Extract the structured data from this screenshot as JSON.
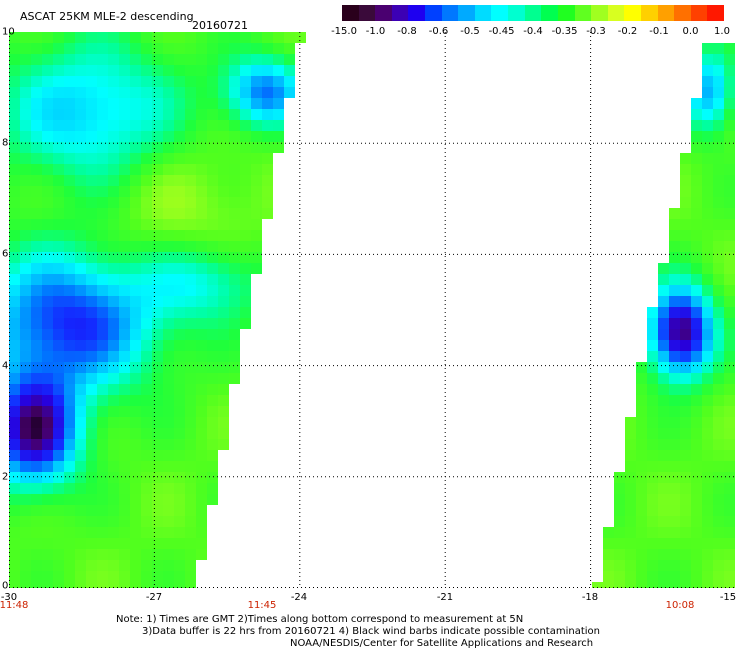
{
  "header": {
    "title": "ASCAT 25KM MLE-2 descending",
    "date": "20160721"
  },
  "colorbar": {
    "tick_labels": [
      "-15.0",
      "-1.0",
      "-0.8",
      "-0.6",
      "-0.5",
      "-0.45",
      "-0.4",
      "-0.35",
      "-0.3",
      "-0.2",
      "-0.1",
      "0.0",
      "1.0"
    ],
    "colors": [
      "#2a001c",
      "#3a0a3a",
      "#4a0070",
      "#3c00b4",
      "#1e00f0",
      "#0040ff",
      "#0078ff",
      "#00aaff",
      "#00dcff",
      "#00ffff",
      "#00ffd0",
      "#00ff90",
      "#00ff50",
      "#20ff20",
      "#60ff20",
      "#a0ff20",
      "#d8ff20",
      "#ffff00",
      "#ffd000",
      "#ffa000",
      "#ff7000",
      "#ff4000",
      "#ff1800"
    ]
  },
  "axes": {
    "y_ticks": [
      "10",
      "8",
      "6",
      "4",
      "2",
      "0"
    ],
    "x_ticks": [
      "-30",
      "-27",
      "-24",
      "-21",
      "-18",
      "-15"
    ],
    "time_labels": [
      "11:48",
      "11:45",
      "10:08"
    ],
    "lat_range": [
      0,
      10
    ],
    "lon_range": [
      -30,
      -15
    ]
  },
  "notes": {
    "line1": "Note: 1) Times are GMT 2)Times along bottom correspond to measurement at 5N",
    "line2": "3)Data buffer is 22 hrs from 20160721 4) Black wind barbs indicate possible contamination",
    "line3": "NOAA/NESDIS/Center for Satellite Applications and Research"
  }
}
